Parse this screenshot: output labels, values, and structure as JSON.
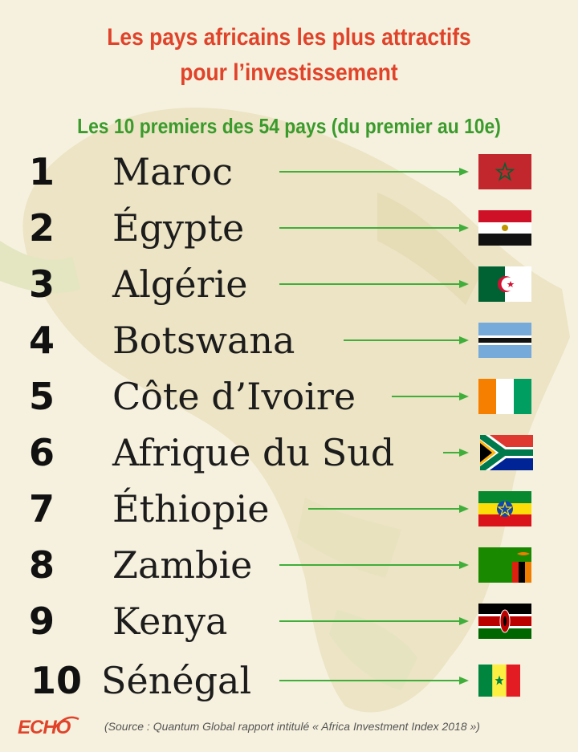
{
  "title_line1": "Les pays africains les plus attractifs",
  "title_line2": "pour l’investissement",
  "subtitle": "Les 10 premiers des 54 pays (du premier au 10e)",
  "colors": {
    "title": "#e0432a",
    "subtitle": "#3a9b2c",
    "arrow": "#3fae3a",
    "background": "#f6f1de"
  },
  "ranking": [
    {
      "rank": "1",
      "country": "Maroc",
      "flag_icon": "morocco-flag-icon"
    },
    {
      "rank": "2",
      "country": "Égypte",
      "flag_icon": "egypt-flag-icon"
    },
    {
      "rank": "3",
      "country": "Algérie",
      "flag_icon": "algeria-flag-icon"
    },
    {
      "rank": "4",
      "country": "Botswana",
      "flag_icon": "botswana-flag-icon"
    },
    {
      "rank": "5",
      "country": "Côte d’Ivoire",
      "flag_icon": "cote-divoire-flag-icon"
    },
    {
      "rank": "6",
      "country": "Afrique du Sud",
      "flag_icon": "south-africa-flag-icon"
    },
    {
      "rank": "7",
      "country": "Éthiopie",
      "flag_icon": "ethiopia-flag-icon"
    },
    {
      "rank": "8",
      "country": "Zambie",
      "flag_icon": "zambia-flag-icon"
    },
    {
      "rank": "9",
      "country": "Kenya",
      "flag_icon": "kenya-flag-icon"
    },
    {
      "rank": "10",
      "country": "Sénégal",
      "flag_icon": "senegal-flag-icon"
    }
  ],
  "logo": "ECHO",
  "source": "(Source : Quantum Global rapport intitulé « Africa Investment Index 2018 »)"
}
